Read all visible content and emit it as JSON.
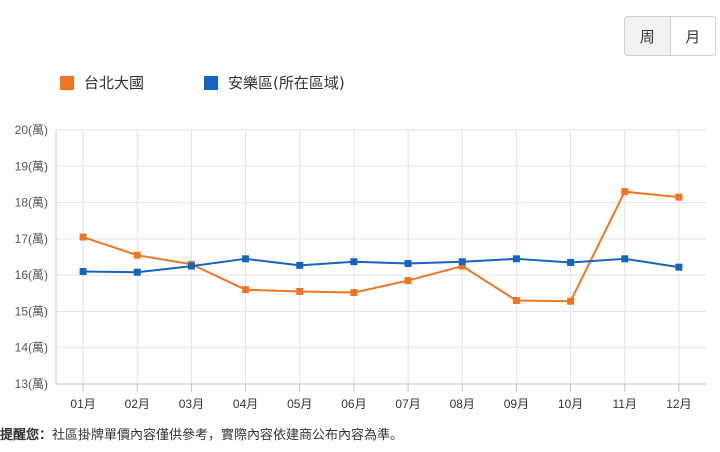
{
  "toggle": {
    "week_label": "周",
    "month_label": "月"
  },
  "footnote": {
    "label": "提醒您：",
    "text": "社區掛牌單價內容僅供參考，實際內容依建商公布內容為準。"
  },
  "chart_data": {
    "type": "line",
    "categories": [
      "01月",
      "02月",
      "03月",
      "04月",
      "05月",
      "06月",
      "07月",
      "08月",
      "09月",
      "10月",
      "11月",
      "12月"
    ],
    "y_tick_labels": [
      "13(萬)",
      "14(萬)",
      "15(萬)",
      "16(萬)",
      "17(萬)",
      "18(萬)",
      "19(萬)",
      "20(萬)"
    ],
    "ylim": [
      13,
      20
    ],
    "grid": true,
    "legend": "top-left",
    "series": [
      {
        "name": "台北大國",
        "color": "#ee7623",
        "values": [
          17.05,
          16.55,
          16.3,
          15.6,
          15.55,
          15.52,
          15.85,
          16.25,
          15.3,
          15.28,
          18.3,
          18.15
        ]
      },
      {
        "name": "安樂區(所在區域)",
        "color": "#1565c0",
        "values": [
          16.1,
          16.08,
          16.25,
          16.45,
          16.27,
          16.37,
          16.32,
          16.37,
          16.45,
          16.35,
          16.45,
          16.22
        ]
      }
    ]
  }
}
